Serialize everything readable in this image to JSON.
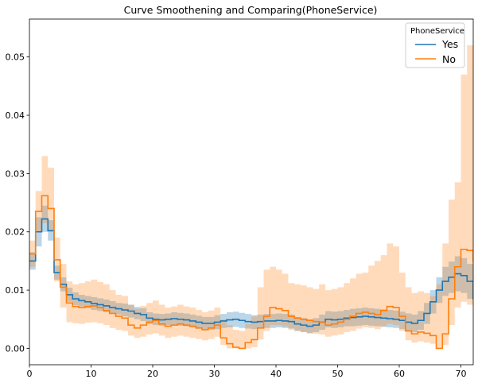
{
  "chart_data": {
    "type": "line",
    "title": "Curve Smoothening and Comparing(PhoneService)",
    "xlabel": "",
    "ylabel": "",
    "xlim": [
      0,
      72
    ],
    "ylim": [
      -0.0028,
      0.0565
    ],
    "x_ticks": [
      0,
      10,
      20,
      30,
      40,
      50,
      60,
      70
    ],
    "x_tick_labels": [
      "0",
      "10",
      "20",
      "30",
      "40",
      "50",
      "60",
      "70"
    ],
    "y_ticks": [
      0.0,
      0.01,
      0.02,
      0.03,
      0.04,
      0.05
    ],
    "y_tick_labels": [
      "0.00",
      "0.01",
      "0.02",
      "0.03",
      "0.04",
      "0.05"
    ],
    "grid": false,
    "legend": {
      "title": "PhoneService",
      "placement": "top-right"
    },
    "series": [
      {
        "name": "Yes",
        "color": "#1f77b4",
        "band_color": "#1f77b4",
        "step": true,
        "x": [
          0,
          1,
          2,
          3,
          4,
          5,
          6,
          7,
          8,
          9,
          10,
          11,
          12,
          13,
          14,
          15,
          16,
          17,
          18,
          19,
          20,
          21,
          22,
          23,
          24,
          25,
          26,
          27,
          28,
          29,
          30,
          31,
          32,
          33,
          34,
          35,
          36,
          37,
          38,
          39,
          40,
          41,
          42,
          43,
          44,
          45,
          46,
          47,
          48,
          49,
          50,
          51,
          52,
          53,
          54,
          55,
          56,
          57,
          58,
          59,
          60,
          61,
          62,
          63,
          64,
          65,
          66,
          67,
          68,
          69,
          70,
          71,
          72
        ],
        "y": [
          0.015,
          0.02,
          0.0222,
          0.0202,
          0.013,
          0.011,
          0.0092,
          0.0085,
          0.0082,
          0.008,
          0.0077,
          0.0075,
          0.0073,
          0.007,
          0.0068,
          0.0066,
          0.0064,
          0.006,
          0.0058,
          0.0052,
          0.005,
          0.0049,
          0.005,
          0.0051,
          0.005,
          0.0049,
          0.0047,
          0.0045,
          0.0043,
          0.0043,
          0.0045,
          0.0047,
          0.0049,
          0.005,
          0.0048,
          0.0046,
          0.0045,
          0.0046,
          0.0047,
          0.0047,
          0.0048,
          0.0047,
          0.0046,
          0.0042,
          0.004,
          0.0038,
          0.004,
          0.0045,
          0.005,
          0.0049,
          0.005,
          0.0052,
          0.0053,
          0.0054,
          0.0055,
          0.0054,
          0.0053,
          0.0052,
          0.0051,
          0.005,
          0.0048,
          0.0045,
          0.0043,
          0.0048,
          0.006,
          0.008,
          0.01,
          0.0115,
          0.0122,
          0.0128,
          0.0125,
          0.0115,
          0.0085
        ],
        "lower": [
          0.0135,
          0.0175,
          0.02,
          0.0185,
          0.0118,
          0.0098,
          0.008,
          0.0074,
          0.0072,
          0.0069,
          0.0066,
          0.0064,
          0.0062,
          0.006,
          0.0058,
          0.0055,
          0.0053,
          0.005,
          0.0047,
          0.0042,
          0.004,
          0.0039,
          0.004,
          0.004,
          0.0039,
          0.0038,
          0.0036,
          0.0034,
          0.0032,
          0.0032,
          0.0033,
          0.0035,
          0.0036,
          0.0037,
          0.0035,
          0.0034,
          0.0033,
          0.0034,
          0.0035,
          0.0035,
          0.0036,
          0.0035,
          0.0034,
          0.003,
          0.0028,
          0.0026,
          0.0028,
          0.0032,
          0.0036,
          0.0035,
          0.0036,
          0.0038,
          0.0038,
          0.0039,
          0.004,
          0.0039,
          0.0038,
          0.0037,
          0.0036,
          0.0035,
          0.0033,
          0.003,
          0.0028,
          0.0032,
          0.0042,
          0.006,
          0.0078,
          0.009,
          0.0095,
          0.0098,
          0.0095,
          0.0085,
          0.006
        ],
        "upper": [
          0.0165,
          0.0225,
          0.0245,
          0.022,
          0.0142,
          0.0122,
          0.0104,
          0.0096,
          0.0092,
          0.009,
          0.0088,
          0.0086,
          0.0084,
          0.0081,
          0.0078,
          0.0077,
          0.0075,
          0.0071,
          0.0069,
          0.0062,
          0.006,
          0.0059,
          0.006,
          0.0062,
          0.0061,
          0.006,
          0.0058,
          0.0056,
          0.0054,
          0.0054,
          0.0057,
          0.0059,
          0.0062,
          0.0063,
          0.0061,
          0.0059,
          0.0057,
          0.0058,
          0.0059,
          0.0059,
          0.006,
          0.0059,
          0.0058,
          0.0054,
          0.0052,
          0.005,
          0.0052,
          0.0058,
          0.0064,
          0.0063,
          0.0064,
          0.0066,
          0.0068,
          0.0069,
          0.007,
          0.0069,
          0.0068,
          0.0067,
          0.0066,
          0.0065,
          0.0063,
          0.006,
          0.0058,
          0.0064,
          0.0078,
          0.01,
          0.0122,
          0.014,
          0.0149,
          0.0158,
          0.0155,
          0.0145,
          0.011
        ]
      },
      {
        "name": "No",
        "color": "#ff7f0e",
        "band_color": "#ff7f0e",
        "step": true,
        "x": [
          0,
          1,
          2,
          3,
          4,
          5,
          6,
          7,
          8,
          9,
          10,
          11,
          12,
          13,
          14,
          15,
          16,
          17,
          18,
          19,
          20,
          21,
          22,
          23,
          24,
          25,
          26,
          27,
          28,
          29,
          30,
          31,
          32,
          33,
          34,
          35,
          36,
          37,
          38,
          39,
          40,
          41,
          42,
          43,
          44,
          45,
          46,
          47,
          48,
          49,
          50,
          51,
          52,
          53,
          54,
          55,
          56,
          57,
          58,
          59,
          60,
          61,
          62,
          63,
          64,
          65,
          66,
          67,
          68,
          69,
          70,
          71,
          72
        ],
        "y": [
          0.0162,
          0.0235,
          0.0262,
          0.024,
          0.0152,
          0.0105,
          0.0078,
          0.0072,
          0.007,
          0.0072,
          0.0073,
          0.007,
          0.0065,
          0.006,
          0.0055,
          0.0052,
          0.004,
          0.0035,
          0.004,
          0.0045,
          0.0048,
          0.0042,
          0.0038,
          0.004,
          0.0042,
          0.004,
          0.0038,
          0.0035,
          0.0032,
          0.0035,
          0.004,
          0.0018,
          0.0008,
          0.0002,
          0.0,
          0.001,
          0.0015,
          0.0035,
          0.0055,
          0.007,
          0.0068,
          0.0065,
          0.0055,
          0.0052,
          0.005,
          0.0048,
          0.0046,
          0.0045,
          0.004,
          0.0042,
          0.0045,
          0.005,
          0.0055,
          0.006,
          0.0062,
          0.006,
          0.0058,
          0.0065,
          0.0072,
          0.007,
          0.0055,
          0.003,
          0.0025,
          0.0028,
          0.0026,
          0.0022,
          0.0,
          0.0025,
          0.0085,
          0.014,
          0.017,
          0.0168,
          0.015
        ],
        "lower": [
          0.014,
          0.02,
          0.0215,
          0.02,
          0.0115,
          0.007,
          0.0045,
          0.0043,
          0.0042,
          0.0044,
          0.0045,
          0.0043,
          0.004,
          0.0035,
          0.0032,
          0.003,
          0.0022,
          0.0018,
          0.002,
          0.0024,
          0.0026,
          0.0022,
          0.0018,
          0.002,
          0.0022,
          0.002,
          0.0018,
          0.0016,
          0.0014,
          0.0016,
          0.002,
          0.0006,
          0.0,
          0.0,
          0.0,
          0.0,
          0.0002,
          0.0015,
          0.003,
          0.004,
          0.004,
          0.0038,
          0.0032,
          0.003,
          0.0028,
          0.0026,
          0.0025,
          0.0024,
          0.002,
          0.0022,
          0.0024,
          0.0028,
          0.003,
          0.0034,
          0.0036,
          0.0035,
          0.0033,
          0.0038,
          0.0042,
          0.004,
          0.003,
          0.0014,
          0.001,
          0.0012,
          0.001,
          0.0008,
          0.0,
          0.0006,
          0.004,
          0.007,
          0.008,
          0.0075,
          0.006
        ],
        "upper": [
          0.0185,
          0.027,
          0.033,
          0.031,
          0.019,
          0.0145,
          0.0115,
          0.011,
          0.0112,
          0.0115,
          0.0118,
          0.0114,
          0.011,
          0.01,
          0.0092,
          0.009,
          0.0075,
          0.0068,
          0.0073,
          0.0078,
          0.0082,
          0.0075,
          0.007,
          0.0072,
          0.0075,
          0.0072,
          0.007,
          0.0066,
          0.0062,
          0.0065,
          0.007,
          0.005,
          0.004,
          0.0032,
          0.003,
          0.0042,
          0.0055,
          0.0105,
          0.0135,
          0.014,
          0.0135,
          0.0128,
          0.0112,
          0.011,
          0.0108,
          0.0105,
          0.0102,
          0.011,
          0.01,
          0.0102,
          0.0105,
          0.0112,
          0.012,
          0.0128,
          0.013,
          0.0142,
          0.015,
          0.016,
          0.018,
          0.0175,
          0.013,
          0.0105,
          0.0095,
          0.0098,
          0.0095,
          0.009,
          0.011,
          0.018,
          0.0255,
          0.0285,
          0.047,
          0.052,
          0.056
        ]
      }
    ]
  }
}
